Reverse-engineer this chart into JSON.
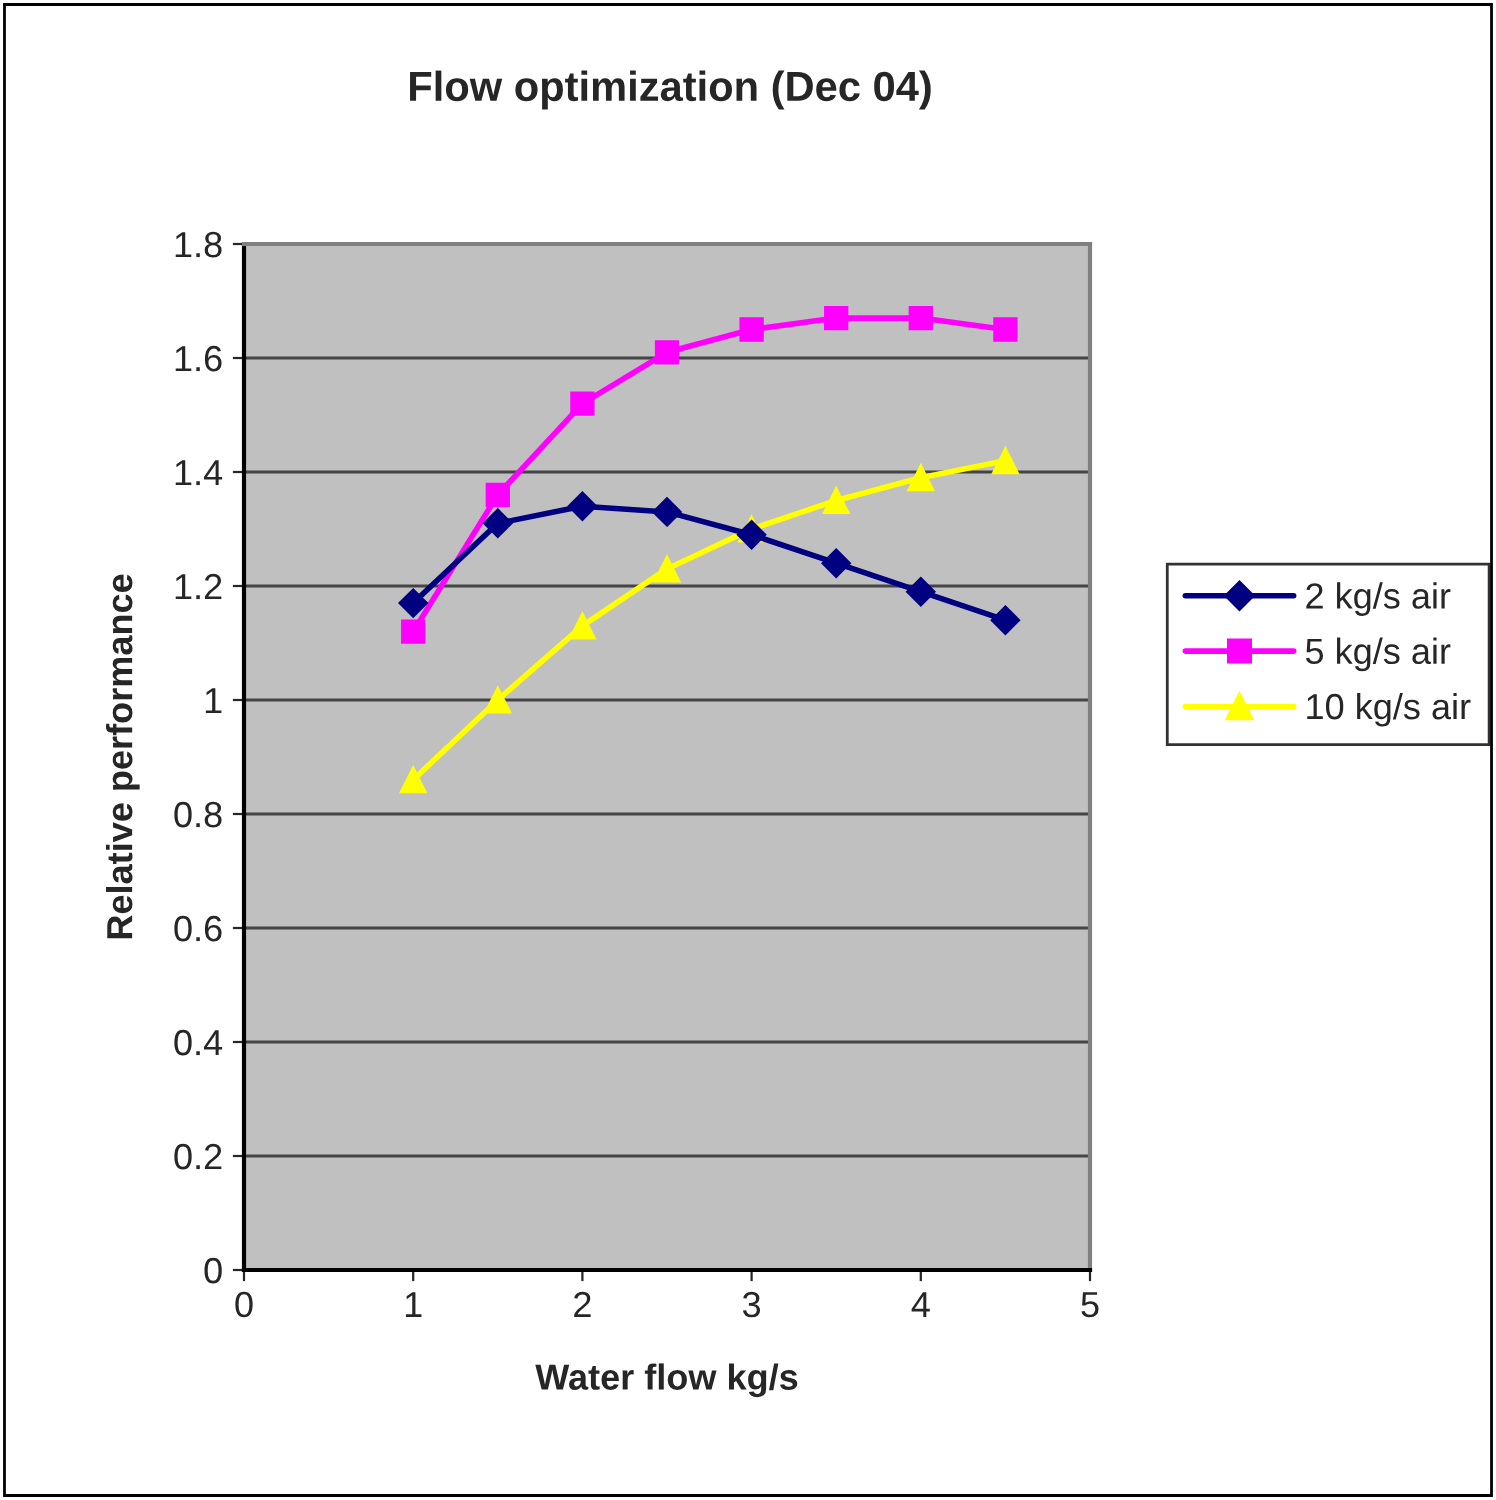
{
  "chart_data": {
    "type": "line",
    "title": "Flow optimization (Dec 04)",
    "xlabel": "Water flow kg/s",
    "ylabel": "Relative performance",
    "x": [
      1,
      1.5,
      2,
      2.5,
      3,
      3.5,
      4,
      4.5
    ],
    "series": [
      {
        "name": "2 kg/s air",
        "color": "#000080",
        "marker": "diamond",
        "values": [
          1.17,
          1.31,
          1.34,
          1.33,
          1.29,
          1.24,
          1.19,
          1.14
        ]
      },
      {
        "name": "5 kg/s air",
        "color": "#ff00ff",
        "marker": "square",
        "values": [
          1.12,
          1.36,
          1.52,
          1.61,
          1.65,
          1.67,
          1.67,
          1.65
        ]
      },
      {
        "name": "10 kg/s air",
        "color": "#ffff00",
        "marker": "triangle",
        "values": [
          0.86,
          1.0,
          1.13,
          1.23,
          1.3,
          1.35,
          1.39,
          1.42
        ]
      }
    ],
    "xlim": [
      0,
      5
    ],
    "xticks": [
      0,
      1,
      2,
      3,
      4,
      5
    ],
    "ylim": [
      0,
      1.8
    ],
    "yticks": [
      0,
      0.2,
      0.4,
      0.6,
      0.8,
      1,
      1.2,
      1.4,
      1.6,
      1.8
    ],
    "grid": "y",
    "legend": "right",
    "line_style": "solid"
  }
}
